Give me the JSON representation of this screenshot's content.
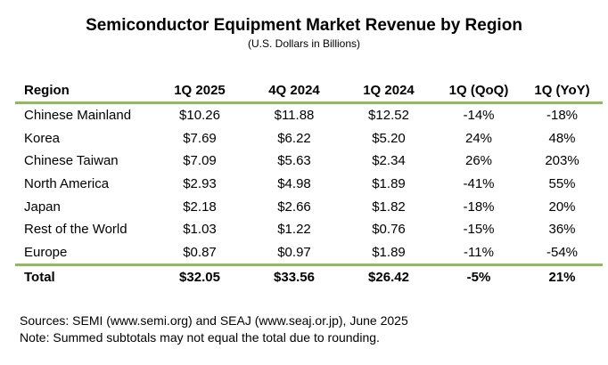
{
  "title": "Semiconductor Equipment Market Revenue by Region",
  "subtitle": "(U.S. Dollars in Billions)",
  "table": {
    "headers": [
      "Region",
      "1Q 2025",
      "4Q 2024",
      "1Q 2024",
      "1Q (QoQ)",
      "1Q (YoY)"
    ],
    "rows": [
      [
        "Chinese Mainland",
        "$10.26",
        "$11.88",
        "$12.52",
        "-14%",
        "-18%"
      ],
      [
        "Korea",
        "$7.69",
        "$6.22",
        "$5.20",
        "24%",
        "48%"
      ],
      [
        "Chinese Taiwan",
        "$7.09",
        "$5.63",
        "$2.34",
        "26%",
        "203%"
      ],
      [
        "North America",
        "$2.93",
        "$4.98",
        "$1.89",
        "-41%",
        "55%"
      ],
      [
        "Japan",
        "$2.18",
        "$2.66",
        "$1.82",
        "-18%",
        "20%"
      ],
      [
        "Rest of the World",
        "$1.03",
        "$1.22",
        "$0.76",
        "-15%",
        "36%"
      ],
      [
        "Europe",
        "$0.87",
        "$0.97",
        "$1.89",
        "-11%",
        "-54%"
      ]
    ],
    "total": [
      "Total",
      "$32.05",
      "$33.56",
      "$26.42",
      "-5%",
      "21%"
    ]
  },
  "notes": {
    "sources": "Sources: SEMI (www.semi.org) and SEAJ (www.seaj.or.jp), June 2025",
    "note": "Note: Summed subtotals may not equal the total due to rounding."
  },
  "colors": {
    "rule": "#8fbc5a"
  }
}
